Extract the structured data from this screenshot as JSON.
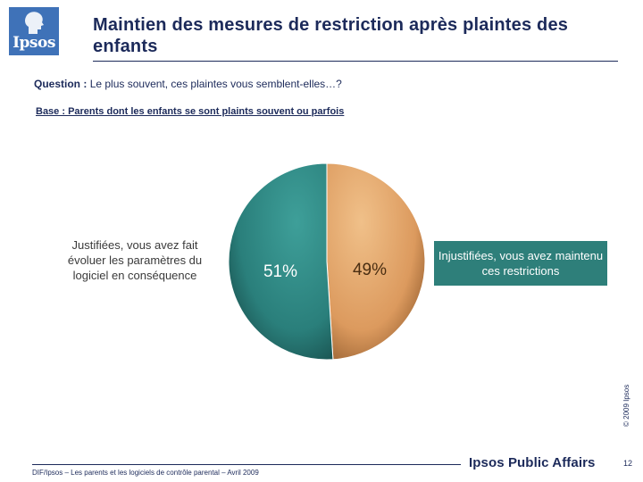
{
  "header": {
    "logo_text": "Ipsos",
    "title": "Maintien des mesures de restriction après plaintes des enfants"
  },
  "question": {
    "label": "Question :",
    "text": "Le plus souvent, ces plaintes vous semblent-elles…?"
  },
  "base": "Base : Parents dont les enfants se sont plaints souvent ou parfois",
  "chart_data": {
    "type": "pie",
    "title": "",
    "start_angle_deg": 0,
    "slices": [
      {
        "label": "Injustifiées, vous avez maintenu ces restrictions",
        "value": 49,
        "value_label": "49%",
        "color": "#e0a26a"
      },
      {
        "label": "Justifiées, vous avez fait évoluer les paramètres du logiciel en conséquence",
        "value": 51,
        "value_label": "51%",
        "color": "#2f8683"
      }
    ]
  },
  "colors": {
    "navy": "#1c2a5a",
    "teal": "#2f8683",
    "orange": "#e0a26a",
    "logo_blue": "#3f72b8"
  },
  "footer": {
    "source": "DIF/Ipsos – Les parents et les logiciels de contrôle parental – Avril 2009",
    "brand": "Ipsos Public Affairs",
    "page_number": "12",
    "copyright": "© 2009 Ipsos"
  }
}
